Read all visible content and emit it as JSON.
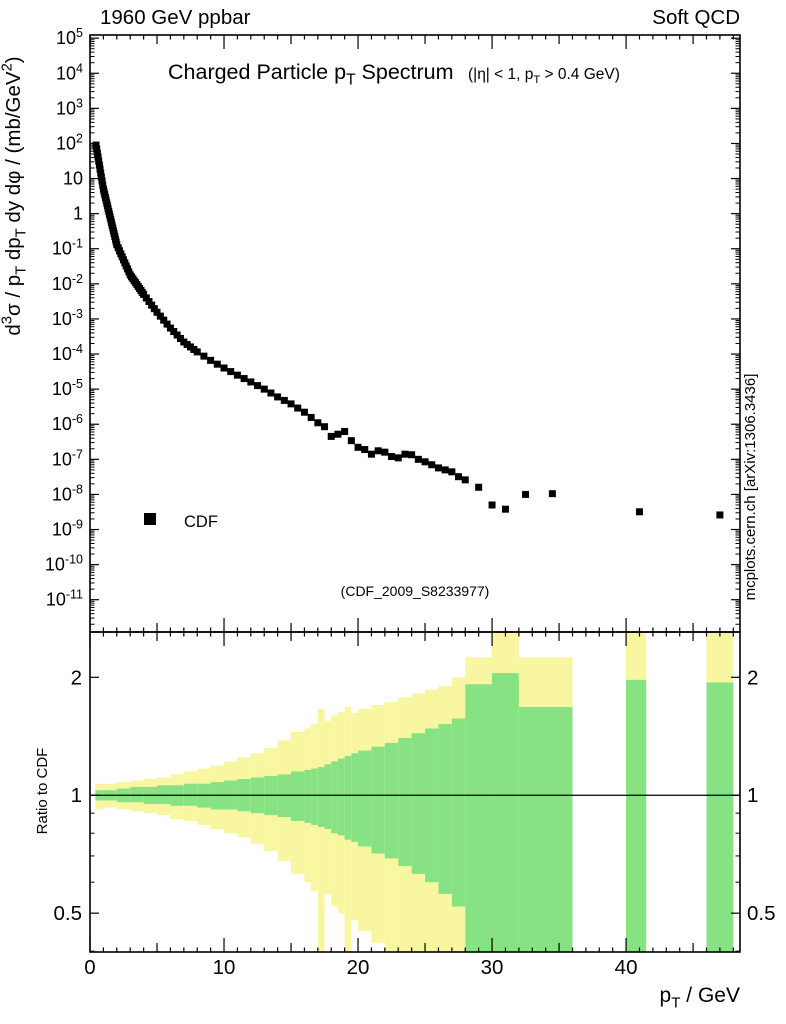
{
  "header": {
    "left": "1960 GeV ppbar",
    "right": "Soft QCD"
  },
  "watermark": "(CDF_2009_S8233977)",
  "side_note": "mcplots.cern.ch [arXiv:1306.3436]",
  "colors": {
    "marker": "#000000",
    "band_outer": "#f8f6a0",
    "band_inner": "#86e283",
    "watermark": "#b4b4b4",
    "side_note": "#8f8f8f",
    "frame": "#000000"
  },
  "chart_data": {
    "type": "scatter",
    "title": "Charged Particle p_{T} Spectrum",
    "subtitle": "(|η| < 1, p_{T} > 0.4 GeV)",
    "xlabel": "p_{T} / GeV",
    "ylabel": "d^{3}σ / p_{T} dp_{T} dy dφ / (mb/GeV^{2})",
    "ratio_ylabel": "Ratio to CDF",
    "legend": [
      {
        "label": "CDF",
        "marker": "filled-square"
      }
    ],
    "x_range": [
      0,
      48.5
    ],
    "y_log_exp_range": [
      -11.92,
      5.09
    ],
    "ratio_range": [
      0.398,
      2.61
    ],
    "x_ticks": [
      0,
      10,
      20,
      30,
      40
    ],
    "y_tick_exponents": [
      5,
      4,
      3,
      2,
      1,
      0,
      -1,
      -2,
      -3,
      -4,
      -5,
      -6,
      -7,
      -8,
      -9,
      -10,
      -11
    ],
    "ratio_ticks": [
      2,
      1,
      0.5
    ],
    "ratio_minor_ticks": [
      0.4,
      0.6,
      0.7,
      0.8,
      0.9
    ],
    "grid": false,
    "series": [
      {
        "name": "CDF",
        "points": [
          [
            0.45,
            90
          ],
          [
            0.5,
            69
          ],
          [
            0.55,
            53
          ],
          [
            0.6,
            41
          ],
          [
            0.65,
            31.5
          ],
          [
            0.7,
            24.2
          ],
          [
            0.75,
            18.6
          ],
          [
            0.8,
            14.3
          ],
          [
            0.85,
            11.0
          ],
          [
            0.9,
            8.5
          ],
          [
            0.95,
            6.5
          ],
          [
            1.0,
            5.0
          ],
          [
            1.05,
            4.16
          ],
          [
            1.1,
            3.47
          ],
          [
            1.15,
            2.89
          ],
          [
            1.2,
            2.41
          ],
          [
            1.25,
            2.0
          ],
          [
            1.3,
            1.67
          ],
          [
            1.35,
            1.39
          ],
          [
            1.4,
            1.16
          ],
          [
            1.45,
            0.965
          ],
          [
            1.5,
            0.8
          ],
          [
            1.55,
            0.67
          ],
          [
            1.6,
            0.56
          ],
          [
            1.65,
            0.465
          ],
          [
            1.7,
            0.388
          ],
          [
            1.75,
            0.323
          ],
          [
            1.8,
            0.269
          ],
          [
            1.85,
            0.224
          ],
          [
            1.9,
            0.187
          ],
          [
            1.95,
            0.156
          ],
          [
            2.0,
            0.13
          ],
          [
            2.1,
            0.1066
          ],
          [
            2.2,
            0.0874
          ],
          [
            2.3,
            0.0717
          ],
          [
            2.4,
            0.0588
          ],
          [
            2.5,
            0.0482
          ],
          [
            2.6,
            0.0395
          ],
          [
            2.7,
            0.0324
          ],
          [
            2.8,
            0.0266
          ],
          [
            2.9,
            0.0218
          ],
          [
            3.0,
            0.018
          ],
          [
            3.1,
            0.01584
          ],
          [
            3.2,
            0.01394
          ],
          [
            3.3,
            0.01227
          ],
          [
            3.4,
            0.0108
          ],
          [
            3.5,
            0.0095
          ],
          [
            3.6,
            0.00836
          ],
          [
            3.7,
            0.00736
          ],
          [
            3.8,
            0.00648
          ],
          [
            3.9,
            0.0057
          ],
          [
            4.0,
            0.005
          ],
          [
            4.2,
            0.00396
          ],
          [
            4.4,
            0.00313
          ],
          [
            4.6,
            0.00248
          ],
          [
            4.8,
            0.00196
          ],
          [
            5.0,
            0.00155
          ],
          [
            5.25,
            0.0012
          ],
          [
            5.5,
            0.000924
          ],
          [
            5.75,
            0.000713
          ],
          [
            6.0,
            0.00055
          ],
          [
            6.25,
            0.000437
          ],
          [
            6.5,
            0.000348
          ],
          [
            6.75,
            0.000277
          ],
          [
            7.0,
            0.00022
          ],
          [
            7.25,
            0.000187
          ],
          [
            7.5,
            0.000159
          ],
          [
            7.75,
            0.000135
          ],
          [
            8.0,
            0.000115
          ],
          [
            8.5,
            8.71e-05
          ],
          [
            9.0,
            6.6e-05
          ],
          [
            9.5,
            5.14e-05
          ],
          [
            10.0,
            4e-05
          ],
          [
            10.5,
            3.16e-05
          ],
          [
            11.0,
            2.5e-05
          ],
          [
            11.5,
            2e-05
          ],
          [
            12.0,
            1.6e-05
          ],
          [
            12.5,
            1.26e-05
          ],
          [
            13.0,
            1e-05
          ],
          [
            13.5,
            7.75e-06
          ],
          [
            14.0,
            6e-06
          ],
          [
            14.5,
            4.77e-06
          ],
          [
            15.0,
            3.8e-06
          ],
          [
            15.5,
            2.89e-06
          ],
          [
            16.0,
            2.2e-06
          ],
          [
            16.5,
            1.56e-06
          ],
          [
            17.0,
            1.1e-06
          ],
          [
            17.5,
            8.5e-07
          ],
          [
            18.0,
            4.5e-07
          ],
          [
            18.5,
            5.2e-07
          ],
          [
            19.0,
            6.2e-07
          ],
          [
            19.5,
            3.4e-07
          ],
          [
            20.0,
            2.2e-07
          ],
          [
            20.5,
            1.9e-07
          ],
          [
            21.0,
            1.4e-07
          ],
          [
            21.5,
            1.75e-07
          ],
          [
            22.0,
            1.6e-07
          ],
          [
            22.5,
            1.2e-07
          ],
          [
            23.0,
            1.1e-07
          ],
          [
            23.5,
            1.4e-07
          ],
          [
            24.0,
            1.35e-07
          ],
          [
            24.5,
            1e-07
          ],
          [
            25.0,
            8.5e-08
          ],
          [
            25.5,
            7e-08
          ],
          [
            26.0,
            5.7e-08
          ],
          [
            26.5,
            5e-08
          ],
          [
            27.0,
            4.4e-08
          ],
          [
            27.5,
            3.2e-08
          ],
          [
            28.0,
            2.6e-08
          ],
          [
            29.0,
            1.6e-08
          ],
          [
            30.0,
            5e-09
          ],
          [
            31.0,
            3.8e-09
          ],
          [
            32.5,
            1e-08
          ],
          [
            34.5,
            1.05e-08
          ],
          [
            41.0,
            3.2e-09
          ],
          [
            47.0,
            2.6e-09
          ]
        ]
      }
    ],
    "ratio_bands": {
      "format": [
        "x0",
        "x1",
        "green_lo",
        "green_hi",
        "yellow_lo",
        "yellow_hi"
      ],
      "bins": [
        [
          0.4,
          1,
          0.97,
          1.03,
          0.92,
          1.07
        ],
        [
          1,
          2,
          0.97,
          1.03,
          0.93,
          1.07
        ],
        [
          2,
          3,
          0.96,
          1.04,
          0.92,
          1.08
        ],
        [
          3,
          4,
          0.96,
          1.05,
          0.91,
          1.09
        ],
        [
          4,
          5,
          0.95,
          1.05,
          0.9,
          1.1
        ],
        [
          5,
          6,
          0.95,
          1.06,
          0.89,
          1.11
        ],
        [
          6,
          7,
          0.94,
          1.06,
          0.87,
          1.13
        ],
        [
          7,
          8,
          0.94,
          1.07,
          0.86,
          1.15
        ],
        [
          8,
          9,
          0.93,
          1.07,
          0.84,
          1.17
        ],
        [
          9,
          10,
          0.92,
          1.08,
          0.82,
          1.19
        ],
        [
          10,
          11,
          0.92,
          1.09,
          0.8,
          1.22
        ],
        [
          11,
          12,
          0.91,
          1.1,
          0.78,
          1.25
        ],
        [
          12,
          13,
          0.9,
          1.11,
          0.75,
          1.28
        ],
        [
          13,
          14,
          0.89,
          1.12,
          0.72,
          1.32
        ],
        [
          14,
          15,
          0.88,
          1.13,
          0.68,
          1.38
        ],
        [
          15,
          16,
          0.86,
          1.15,
          0.63,
          1.45
        ],
        [
          16,
          16.5,
          0.85,
          1.16,
          0.6,
          1.48
        ],
        [
          16.5,
          17,
          0.84,
          1.17,
          0.57,
          1.52
        ],
        [
          17,
          17.5,
          0.83,
          1.18,
          0.4,
          1.66
        ],
        [
          17.5,
          18,
          0.82,
          1.2,
          0.56,
          1.55
        ],
        [
          18,
          18.5,
          0.8,
          1.22,
          0.52,
          1.6
        ],
        [
          18.5,
          19,
          0.79,
          1.24,
          0.5,
          1.63
        ],
        [
          19,
          19.5,
          0.77,
          1.26,
          0.36,
          1.68
        ],
        [
          19.5,
          20,
          0.76,
          1.28,
          0.48,
          1.62
        ],
        [
          20,
          21,
          0.74,
          1.3,
          0.45,
          1.66
        ],
        [
          21,
          22,
          0.71,
          1.33,
          0.42,
          1.7
        ],
        [
          22,
          23,
          0.69,
          1.36,
          0.4,
          1.73
        ],
        [
          23,
          24,
          0.66,
          1.4,
          0.38,
          1.78
        ],
        [
          24,
          25,
          0.63,
          1.44,
          0.4,
          1.82
        ],
        [
          25,
          26,
          0.6,
          1.48,
          0.37,
          1.86
        ],
        [
          26,
          27,
          0.56,
          1.52,
          0.36,
          1.9
        ],
        [
          27,
          28,
          0.52,
          1.57,
          0.36,
          2.0
        ],
        [
          28,
          30,
          0.38,
          1.92,
          0.36,
          2.25
        ],
        [
          30,
          32,
          0.38,
          2.05,
          0.36,
          2.61
        ],
        [
          32,
          36,
          0.38,
          1.68,
          0.36,
          2.25
        ],
        [
          40,
          41.5,
          0.38,
          1.97,
          0.36,
          2.61
        ],
        [
          46,
          48,
          0.38,
          1.94,
          0.36,
          2.61
        ]
      ]
    }
  }
}
